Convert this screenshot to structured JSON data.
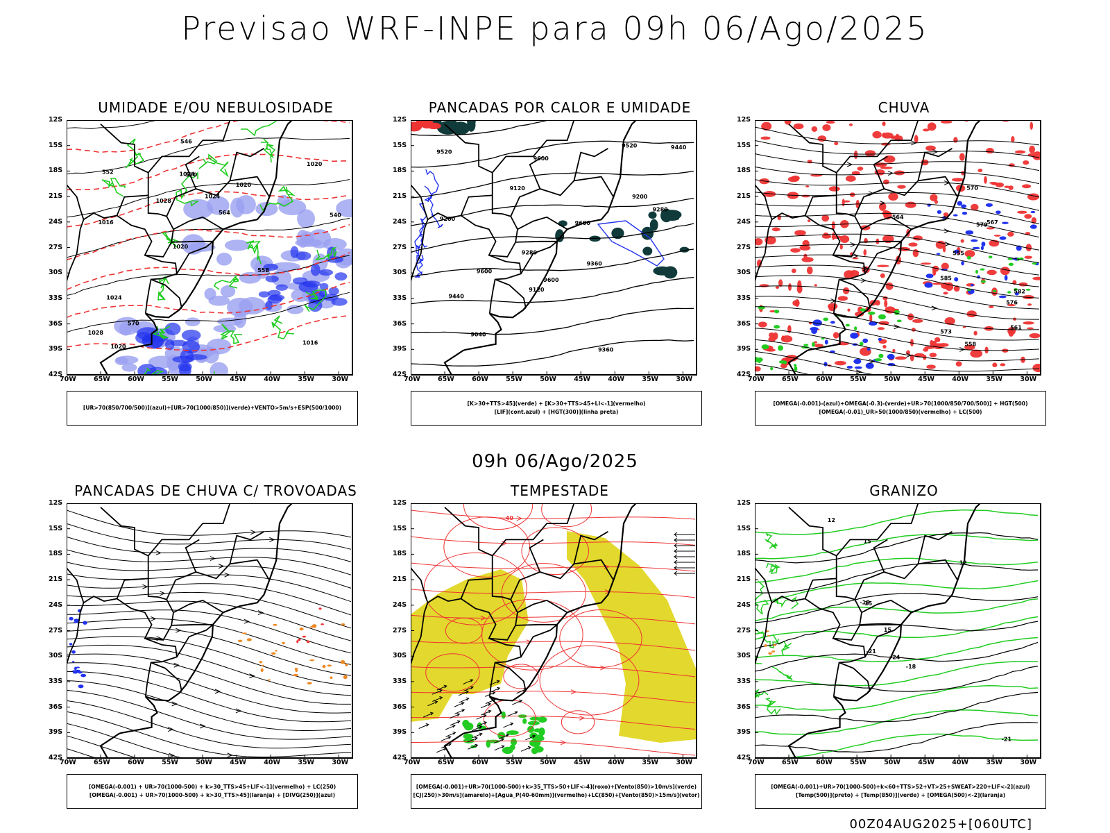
{
  "title": "Previsao WRF-INPE  para 09h 06/Ago/2025",
  "mid_time": "09h 06/Ago/2025",
  "footer": "00Z04AUG2025+[060UTC]",
  "axes": {
    "lat_ticks": [
      "12S",
      "15S",
      "18S",
      "21S",
      "24S",
      "27S",
      "30S",
      "33S",
      "36S",
      "39S",
      "42S"
    ],
    "lon_ticks": [
      "70W",
      "65W",
      "60W",
      "55W",
      "50W",
      "45W",
      "40W",
      "35W",
      "30W"
    ]
  },
  "colors": {
    "blue": "#2233ee",
    "green": "#22cc22",
    "red": "#ee3333",
    "yellow": "#e3d82d",
    "teal": "#113b3b",
    "orange": "#ee8822",
    "lavender": "#9aa0f0",
    "black": "#000000"
  },
  "panels": [
    {
      "title": "UMIDADE E/OU NEBULOSIDADE",
      "legend": [
        "[UR>70(850/700/500)](azul)+[UR>70(1000/850)](verde)+VENTO>5m/s+ESP(500/1000)"
      ],
      "contour_labels": [
        "1016",
        "1016",
        "1020",
        "1020",
        "1020",
        "1020",
        "1024",
        "1024",
        "1024",
        "1028",
        "1028",
        "570",
        "570",
        "564",
        "558",
        "552",
        "546",
        "540"
      ]
    },
    {
      "title": "PANCADAS POR CALOR E UMIDADE",
      "legend": [
        "[K>30+TTS>45](verde) + [K>30+TTS>45+LI<-1](vermelho)",
        "[LIF](cont.azul) + [HGT(300)](linha preta)"
      ],
      "contour_labels": [
        "9600",
        "9600",
        "9600",
        "9600",
        "9520",
        "9520",
        "9440",
        "9440",
        "9360",
        "9360",
        "9280",
        "9280",
        "9200",
        "9200",
        "9120",
        "9120",
        "9040"
      ]
    },
    {
      "title": "CHUVA",
      "legend": [
        "[OMEGA(-0.001)-(azul)+OMEGA(-0.3)-(verde)+UR>70(1000/850/700/500)] + HGT(500)",
        "[OMEGA(-0.01)_UR>50(1000/850)(vermelho) + LC(500)"
      ],
      "contour_labels": [
        "585",
        "582",
        "579",
        "576",
        "573",
        "570",
        "567",
        "564",
        "561",
        "558",
        "555"
      ]
    },
    {
      "title": "PANCADAS DE CHUVA C/ TROVOADAS",
      "legend": [
        "[OMEGA(-0.001) + UR>70(1000-500) + k>30_TTS>45+LIF<-1](vermelho) + LC(250)",
        "[OMEGA(-0.001) + UR>70(1000-500) + k>30_TTS>45](laranja) + [DIVG(250)](azul)"
      ],
      "contour_labels": []
    },
    {
      "title": "TEMPESTADE",
      "legend": [
        "[OMEGA(-0.001)+UR>70(1000-500)+k>35_TTS>50+LIF<-4](roxo)+[Vento(850)>10m/s](verde)",
        "[CJ(250)>30m/s](amarelo)+[Agua_P(40-60mm)](vermelho)+LC(850)+[Vento(850)>15m/s](vetor)"
      ],
      "contour_labels": [
        "40"
      ]
    },
    {
      "title": "GRANIZO",
      "legend": [
        "[OMEGA(-0.001)+UR>70(1000-500)+k<60+TTS>52+VT>25+SWEAT>220+LIF<-2](azul)",
        "[Temp(500)](preto) + [Temp(850)](verde) + [OMEGA(500)<-2](laranja)"
      ],
      "contour_labels": [
        "12",
        "15",
        "15",
        "12",
        "-15",
        "-18",
        "-18",
        "-21",
        "-21",
        "-24"
      ]
    }
  ]
}
